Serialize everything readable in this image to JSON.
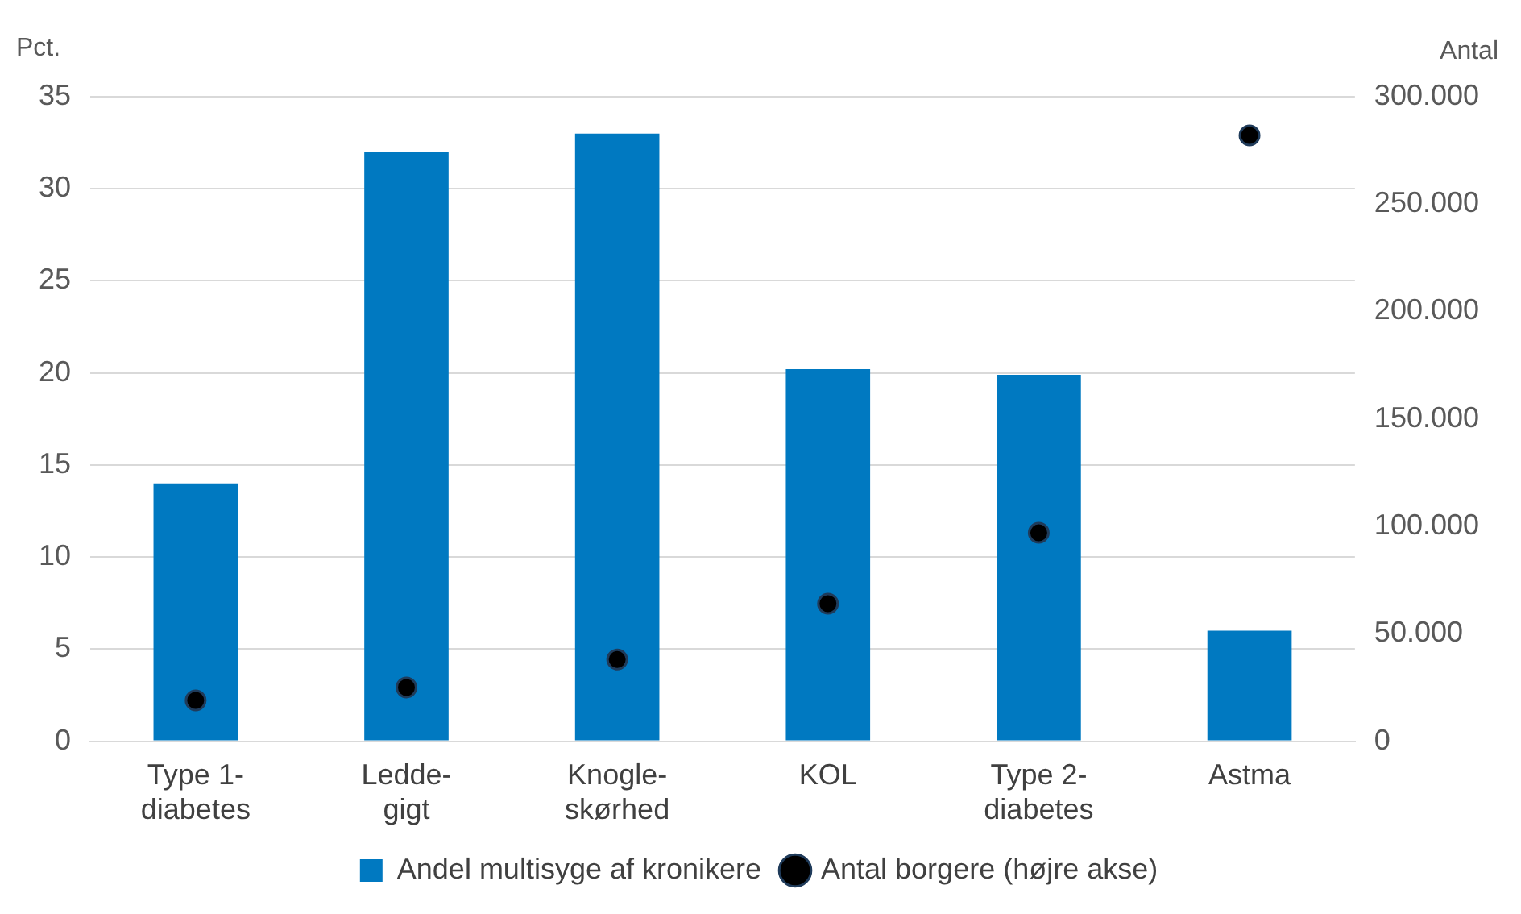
{
  "chart_data": {
    "type": "bar",
    "ylabel": "Pct.",
    "y2label": "Antal",
    "categories": [
      "Type 1-diabetes",
      "Ledde-gigt",
      "Knogle-skørhed",
      "KOL",
      "Type 2-diabetes",
      "Astma"
    ],
    "series": [
      {
        "name": "Andel multisyge af kronikere",
        "color": "#0079c1",
        "values": [
          14,
          32,
          33,
          20.2,
          19.9,
          6
        ]
      },
      {
        "name": "Antal borgere (højre akse)",
        "type": "scatter",
        "axis": "y2",
        "marker": "circle",
        "color": "#000000",
        "values": [
          19000,
          25000,
          38000,
          64000,
          97000,
          282000
        ]
      }
    ],
    "ylim": [
      0,
      35
    ],
    "yticks": [
      0,
      5,
      10,
      15,
      20,
      25,
      30,
      35
    ],
    "y2lim": [
      0,
      300000
    ],
    "y2ticks": [
      0,
      {
        "value": 50000,
        "label": "50.000"
      },
      {
        "value": 100000,
        "label": "100.000"
      },
      {
        "value": 150000,
        "label": "150.000"
      },
      {
        "value": 200000,
        "label": "200.000"
      },
      {
        "value": 250000,
        "label": "250.000"
      },
      {
        "value": 300000,
        "label": "300.000"
      }
    ],
    "grid": "y",
    "legend": "bottom"
  }
}
